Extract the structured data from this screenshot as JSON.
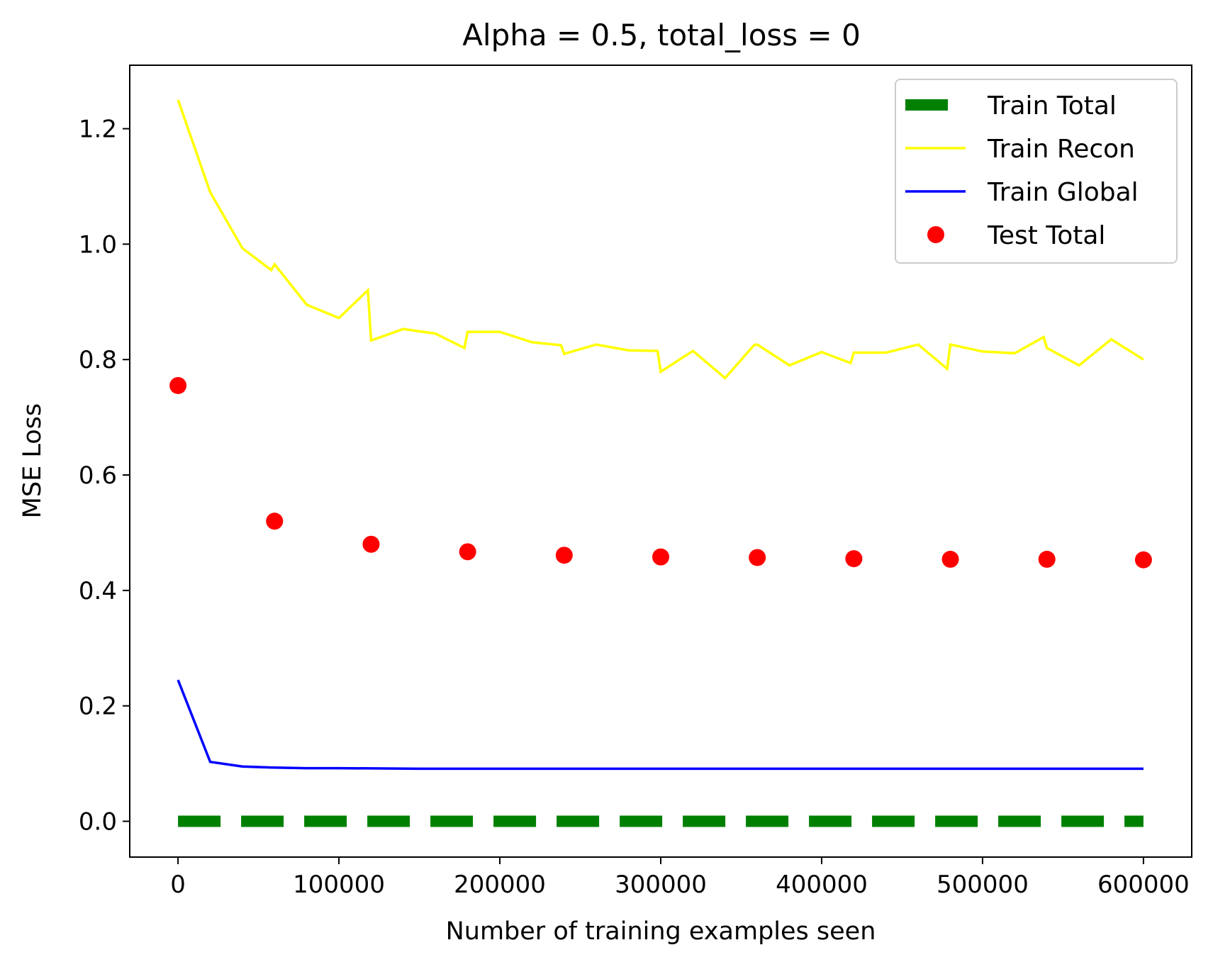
{
  "chart_data": {
    "type": "line",
    "title": "Alpha = 0.5, total_loss = 0",
    "xlabel": "Number of training examples seen",
    "ylabel": "MSE Loss",
    "xlim": [
      -30000,
      630000
    ],
    "ylim": [
      -0.062,
      1.31
    ],
    "xticks": [
      0,
      100000,
      200000,
      300000,
      400000,
      500000,
      600000
    ],
    "xtick_labels": [
      "0",
      "100000",
      "200000",
      "300000",
      "400000",
      "500000",
      "600000"
    ],
    "yticks": [
      0.0,
      0.2,
      0.4,
      0.6,
      0.8,
      1.0,
      1.2
    ],
    "ytick_labels": [
      "0.0",
      "0.2",
      "0.4",
      "0.6",
      "0.8",
      "1.0",
      "1.2"
    ],
    "grid": false,
    "legend_position": "top-right",
    "series": [
      {
        "name": "Train Total",
        "style": "dashed",
        "color": "#008000",
        "x": [
          0,
          600000
        ],
        "y": [
          0.0,
          0.0
        ]
      },
      {
        "name": "Train Recon",
        "style": "line",
        "color": "#ffff00",
        "x": [
          0,
          20000,
          40000,
          58000,
          60000,
          80000,
          100000,
          118000,
          120000,
          140000,
          160000,
          178000,
          180000,
          200000,
          220000,
          238000,
          240000,
          260000,
          280000,
          298000,
          300000,
          320000,
          340000,
          358000,
          360000,
          380000,
          400000,
          418000,
          420000,
          440000,
          460000,
          478000,
          480000,
          500000,
          520000,
          538000,
          540000,
          560000,
          580000,
          600000
        ],
        "y": [
          1.25,
          1.09,
          0.993,
          0.955,
          0.965,
          0.895,
          0.872,
          0.92,
          0.833,
          0.853,
          0.845,
          0.82,
          0.848,
          0.848,
          0.83,
          0.825,
          0.81,
          0.826,
          0.816,
          0.815,
          0.779,
          0.815,
          0.768,
          0.825,
          0.826,
          0.79,
          0.813,
          0.794,
          0.812,
          0.812,
          0.826,
          0.784,
          0.826,
          0.814,
          0.811,
          0.839,
          0.82,
          0.79,
          0.835,
          0.8
        ]
      },
      {
        "name": "Train Global",
        "style": "line",
        "color": "#0000ff",
        "x": [
          0,
          20000,
          40000,
          60000,
          80000,
          100000,
          150000,
          200000,
          250000,
          300000,
          350000,
          400000,
          450000,
          500000,
          550000,
          600000
        ],
        "y": [
          0.245,
          0.103,
          0.095,
          0.093,
          0.092,
          0.092,
          0.091,
          0.091,
          0.091,
          0.091,
          0.091,
          0.091,
          0.091,
          0.091,
          0.091,
          0.091
        ]
      },
      {
        "name": "Test Total",
        "style": "scatter",
        "color": "#ff0000",
        "x": [
          0,
          60000,
          120000,
          180000,
          240000,
          300000,
          360000,
          420000,
          480000,
          540000,
          600000
        ],
        "y": [
          0.755,
          0.52,
          0.48,
          0.467,
          0.461,
          0.458,
          0.457,
          0.455,
          0.454,
          0.454,
          0.453
        ]
      }
    ]
  }
}
